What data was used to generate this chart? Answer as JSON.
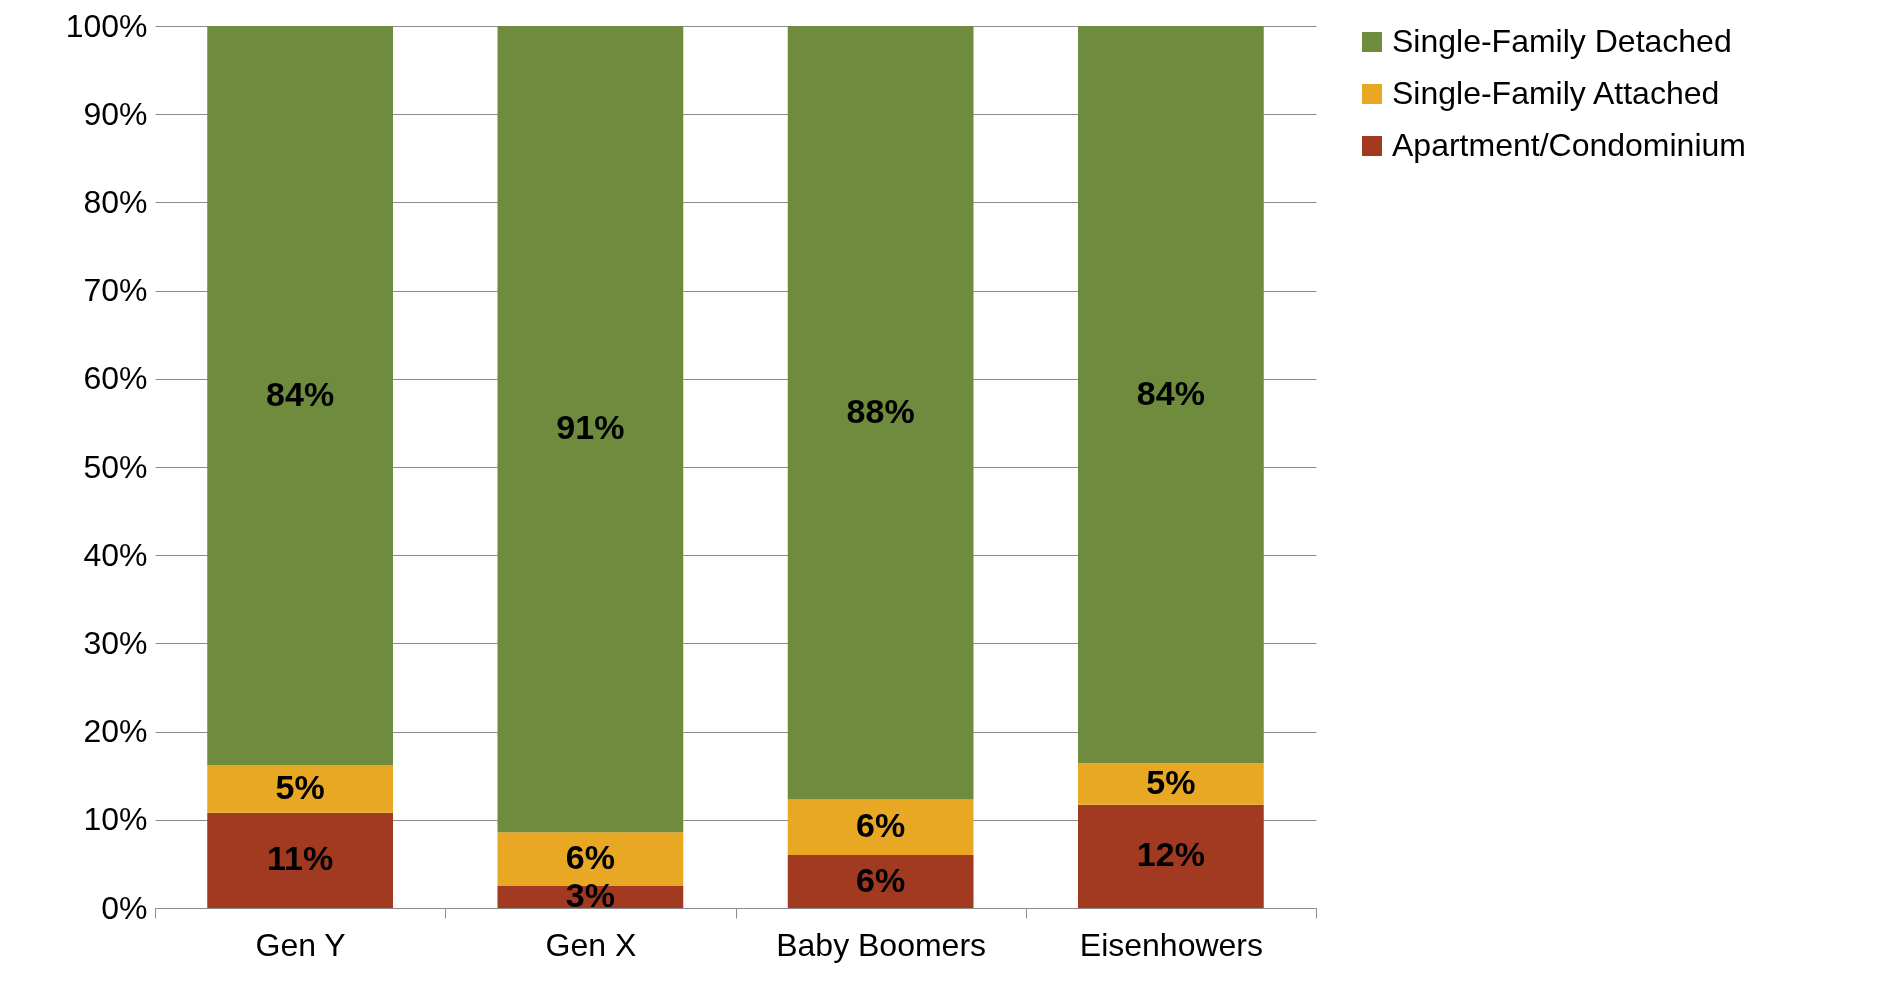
{
  "chart_data": {
    "type": "bar",
    "stacked": true,
    "categories": [
      "Gen Y",
      "Gen X",
      "Baby Boomers",
      "Eisenhowers"
    ],
    "series": [
      {
        "name": "Apartment/Condominium",
        "color": "#a23a22",
        "values": [
          10.8,
          2.5,
          6.0,
          11.7
        ],
        "value_labels": [
          "11%",
          "3%",
          "6%",
          "12%"
        ]
      },
      {
        "name": "Single-Family Attached",
        "color": "#e8a824",
        "values": [
          5.4,
          6.1,
          6.3,
          4.7
        ],
        "value_labels": [
          "5%",
          "6%",
          "6%",
          "5%"
        ]
      },
      {
        "name": "Single-Family Detached",
        "color": "#6f8b3e",
        "values": [
          83.8,
          91.4,
          87.7,
          83.6
        ],
        "value_labels": [
          "84%",
          "91%",
          "88%",
          "84%"
        ]
      }
    ],
    "ylim": [
      0,
      100
    ],
    "yticks": [
      {
        "value": 0,
        "label": "0%"
      },
      {
        "value": 10,
        "label": "10%"
      },
      {
        "value": 20,
        "label": "20%"
      },
      {
        "value": 30,
        "label": "30%"
      },
      {
        "value": 40,
        "label": "40%"
      },
      {
        "value": 50,
        "label": "50%"
      },
      {
        "value": 60,
        "label": "60%"
      },
      {
        "value": 70,
        "label": "70%"
      },
      {
        "value": 80,
        "label": "80%"
      },
      {
        "value": 90,
        "label": "90%"
      },
      {
        "value": 100,
        "label": "100%"
      }
    ],
    "grid": "y",
    "legend": "right"
  }
}
